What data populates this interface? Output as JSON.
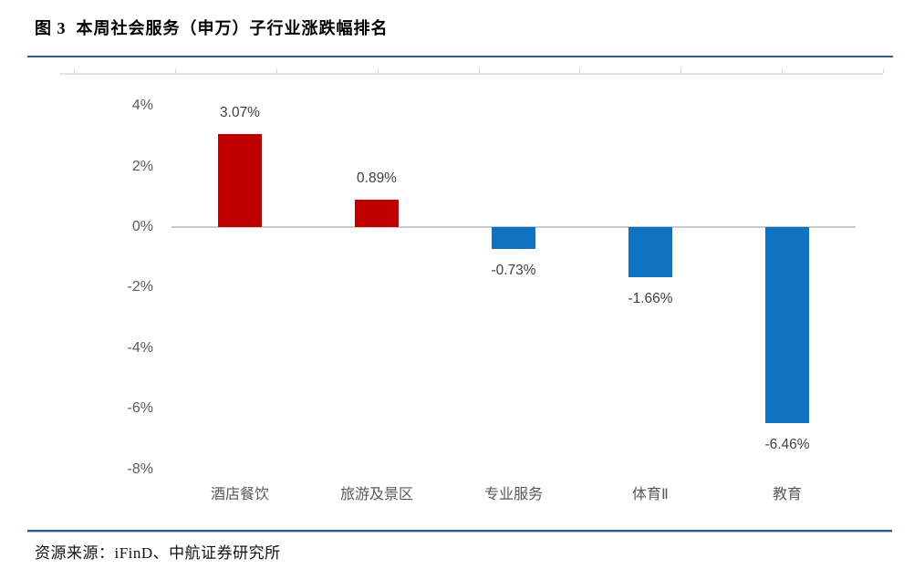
{
  "page": {
    "title": "图 3  本周社会服务（申万）子行业涨跌幅排名",
    "source": "资源来源：iFinD、中航证券研究所"
  },
  "chart_data": {
    "type": "bar",
    "title": "本周社会服务（申万）子行业涨跌幅排名",
    "categories": [
      "酒店餐饮",
      "旅游及景区",
      "专业服务",
      "体育Ⅱ",
      "教育"
    ],
    "values": [
      3.07,
      0.89,
      -0.73,
      -1.66,
      -6.46
    ],
    "data_labels": [
      "3.07%",
      "0.89%",
      "-0.73%",
      "-1.66%",
      "-6.46%"
    ],
    "yticks": [
      {
        "label": "4%",
        "value": 4
      },
      {
        "label": "2%",
        "value": 2
      },
      {
        "label": "0%",
        "value": 0
      },
      {
        "label": "-2%",
        "value": -2
      },
      {
        "label": "-4%",
        "value": -4
      },
      {
        "label": "-6%",
        "value": -6
      },
      {
        "label": "-8%",
        "value": -8
      }
    ],
    "ylim": [
      -8,
      4
    ],
    "xlabel": "",
    "ylabel": "",
    "grid": false,
    "legend": false,
    "colors": {
      "positive": "#c00000",
      "negative": "#0e72c0",
      "axis_line": "#c9c9c9",
      "tick_text": "#595959",
      "label_text": "#404040",
      "rule": "#2e5b97"
    }
  }
}
